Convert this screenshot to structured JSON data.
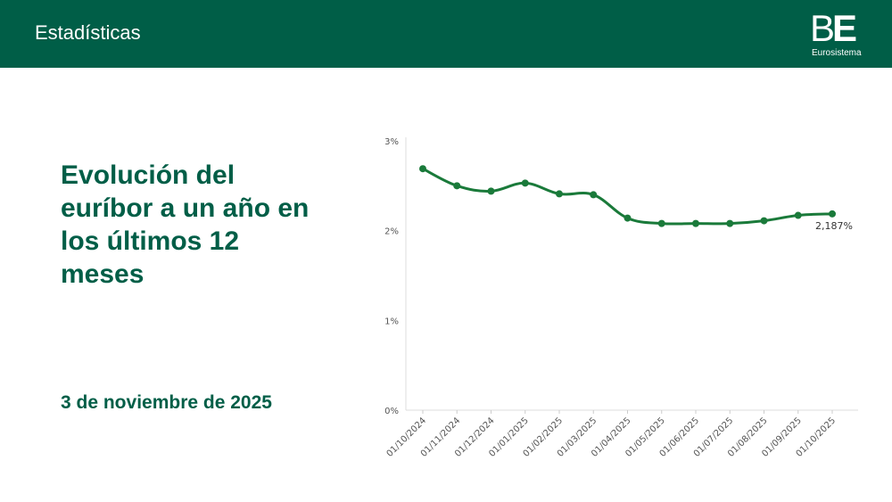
{
  "header": {
    "title": "Estadísticas",
    "logo_mark_b": "B",
    "logo_mark_e": "E",
    "logo_subtitle": "Eurosistema",
    "background_color": "#005e47"
  },
  "main": {
    "title": "Evolución del euríbor a un año en los últimos 12 meses",
    "date": "3 de noviembre de 2025"
  },
  "chart_data": {
    "type": "line",
    "title": "",
    "xlabel": "",
    "ylabel": "",
    "x": [
      "01/10/2024",
      "01/11/2024",
      "01/12/2024",
      "01/01/2025",
      "01/02/2025",
      "01/03/2025",
      "01/04/2025",
      "01/05/2025",
      "01/06/2025",
      "01/07/2025",
      "01/08/2025",
      "01/09/2025",
      "01/10/2025"
    ],
    "series": [
      {
        "color": "#1a7a3a",
        "values": [
          2.69,
          2.5,
          2.44,
          2.53,
          2.41,
          2.4,
          2.14,
          2.08,
          2.08,
          2.08,
          2.11,
          2.17,
          2.187
        ]
      }
    ],
    "yticks": [
      "0%",
      "1%",
      "2%",
      "3%"
    ],
    "ylim": [
      0,
      3
    ],
    "last_value_label": "2,187%",
    "grid": false,
    "legend": "none"
  }
}
